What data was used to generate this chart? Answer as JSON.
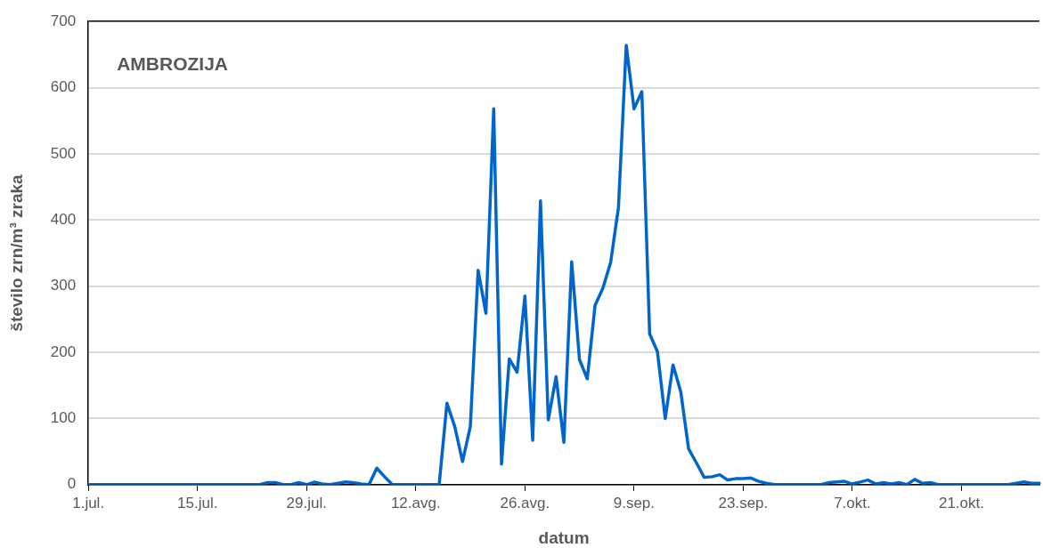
{
  "chart_data": {
    "type": "line",
    "title": "AMBROZIJA",
    "xlabel": "datum",
    "ylabel": "število zrn/m³ zraka",
    "categories": [
      "1.jul.",
      null,
      null,
      null,
      null,
      null,
      null,
      null,
      null,
      null,
      null,
      null,
      null,
      null,
      "15.jul.",
      null,
      null,
      null,
      null,
      null,
      null,
      null,
      null,
      null,
      null,
      null,
      null,
      null,
      "29.jul.",
      null,
      null,
      null,
      null,
      null,
      null,
      null,
      null,
      null,
      null,
      null,
      null,
      null,
      "12.avg.",
      null,
      null,
      null,
      null,
      null,
      null,
      null,
      null,
      null,
      null,
      null,
      null,
      null,
      "26.avg.",
      null,
      null,
      null,
      null,
      null,
      null,
      null,
      null,
      null,
      null,
      null,
      null,
      null,
      "9.sep.",
      null,
      null,
      null,
      null,
      null,
      null,
      null,
      null,
      null,
      null,
      null,
      null,
      null,
      "23.sep.",
      null,
      null,
      null,
      null,
      null,
      null,
      null,
      null,
      null,
      null,
      null,
      null,
      null,
      "7.okt.",
      null,
      null,
      null,
      null,
      null,
      null,
      null,
      null,
      null,
      null,
      null,
      null,
      null,
      "21.okt.",
      null,
      null,
      null,
      null,
      null,
      null,
      null,
      null,
      null,
      null
    ],
    "values": [
      0,
      0,
      0,
      0,
      0,
      0,
      0,
      0,
      0,
      0,
      0,
      0,
      0,
      0,
      0,
      0,
      0,
      0,
      0,
      0,
      0,
      0,
      0,
      3,
      3,
      0,
      0,
      3,
      0,
      4,
      1,
      0,
      2,
      4,
      3,
      1,
      0,
      25,
      12,
      0,
      0,
      0,
      0,
      0,
      0,
      0,
      123,
      88,
      35,
      88,
      324,
      259,
      568,
      31,
      190,
      170,
      285,
      67,
      429,
      98,
      163,
      64,
      337,
      189,
      160,
      271,
      297,
      336,
      419,
      664,
      568,
      594,
      228,
      201,
      100,
      181,
      140,
      54,
      33,
      11,
      12,
      15,
      7,
      9,
      9,
      10,
      5,
      2,
      0,
      0,
      0,
      0,
      0,
      0,
      0,
      3,
      4,
      5,
      1,
      4,
      7,
      1,
      3,
      1,
      3,
      0,
      8,
      2,
      3,
      0,
      0,
      0,
      0,
      0,
      0,
      0,
      0,
      0,
      0,
      2,
      4,
      2,
      2
    ],
    "color": "#0066cc",
    "ylim": [
      0,
      700
    ],
    "yticks": [
      0,
      100,
      200,
      300,
      400,
      500,
      600,
      700
    ],
    "grid": "y",
    "legend": false,
    "marker": "none",
    "line_style": "solid"
  }
}
